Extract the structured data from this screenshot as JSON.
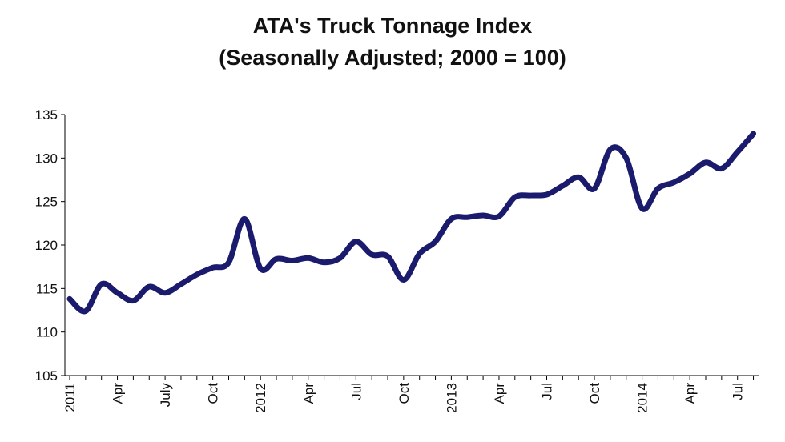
{
  "chart_data": {
    "type": "line",
    "title": "ATA's  Truck Tonnage Index",
    "subtitle": "(Seasonally Adjusted; 2000 = 100)",
    "xlabel": "",
    "ylabel": "",
    "ylim": [
      105,
      135
    ],
    "yticks": [
      105,
      110,
      115,
      120,
      125,
      130,
      135
    ],
    "xtick_labels": [
      "2011",
      "Apr",
      "July",
      "Oct",
      "2012",
      "Apr",
      "Jul",
      "Oct",
      "2013",
      "Apr",
      "Jul",
      "Oct",
      "2014",
      "Apr",
      "Jul"
    ],
    "xtick_positions": [
      0,
      3,
      6,
      9,
      12,
      15,
      18,
      21,
      24,
      27,
      30,
      33,
      36,
      39,
      42
    ],
    "grid": false,
    "legend": "none",
    "line_color": "#1b1b6e",
    "series": [
      {
        "x": [
          "2011-01",
          "2011-02",
          "2011-03",
          "2011-04",
          "2011-05",
          "2011-06",
          "2011-07",
          "2011-08",
          "2011-09",
          "2011-10",
          "2011-11",
          "2011-12",
          "2012-01",
          "2012-02",
          "2012-03",
          "2012-04",
          "2012-05",
          "2012-06",
          "2012-07",
          "2012-08",
          "2012-09",
          "2012-10",
          "2012-11",
          "2012-12",
          "2013-01",
          "2013-02",
          "2013-03",
          "2013-04",
          "2013-05",
          "2013-06",
          "2013-07",
          "2013-08",
          "2013-09",
          "2013-10",
          "2013-11",
          "2013-12",
          "2014-01",
          "2014-02",
          "2014-03",
          "2014-04",
          "2014-05",
          "2014-06",
          "2014-07",
          "2014-08"
        ],
        "values": [
          113.8,
          112.4,
          115.5,
          114.5,
          113.6,
          115.2,
          114.5,
          115.5,
          116.6,
          117.4,
          118.0,
          123.0,
          117.3,
          118.4,
          118.2,
          118.5,
          118.0,
          118.5,
          120.4,
          118.9,
          118.7,
          116.0,
          119.0,
          120.4,
          123.0,
          123.2,
          123.4,
          123.3,
          125.5,
          125.7,
          125.8,
          126.8,
          127.8,
          126.5,
          131.0,
          130.0,
          124.2,
          126.5,
          127.2,
          128.2,
          129.5,
          128.8,
          130.7,
          132.8
        ]
      }
    ]
  }
}
